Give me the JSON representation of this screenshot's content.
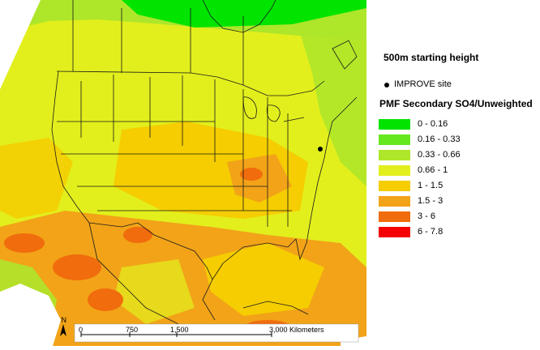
{
  "legend": {
    "height_label": "500m starting height",
    "site_label": "IMPROVE site",
    "title": "PMF Secondary SO4/Unweighted",
    "classes": [
      {
        "range": "0 - 0.16",
        "color": "#00e400"
      },
      {
        "range": "0.16 - 0.33",
        "color": "#66e81e"
      },
      {
        "range": "0.33 - 0.66",
        "color": "#aee62a"
      },
      {
        "range": "0.66 - 1",
        "color": "#e2ef1c"
      },
      {
        "range": "1 - 1.5",
        "color": "#f5cd00"
      },
      {
        "range": "1.5 - 3",
        "color": "#f2a318"
      },
      {
        "range": "3 - 6",
        "color": "#f06c0c"
      },
      {
        "range": "6 - 7.8",
        "color": "#f40000"
      }
    ]
  },
  "scale_bar": {
    "north": "N",
    "ticks": [
      "0",
      "750",
      "1,500",
      "3,000 Kilometers"
    ]
  }
}
